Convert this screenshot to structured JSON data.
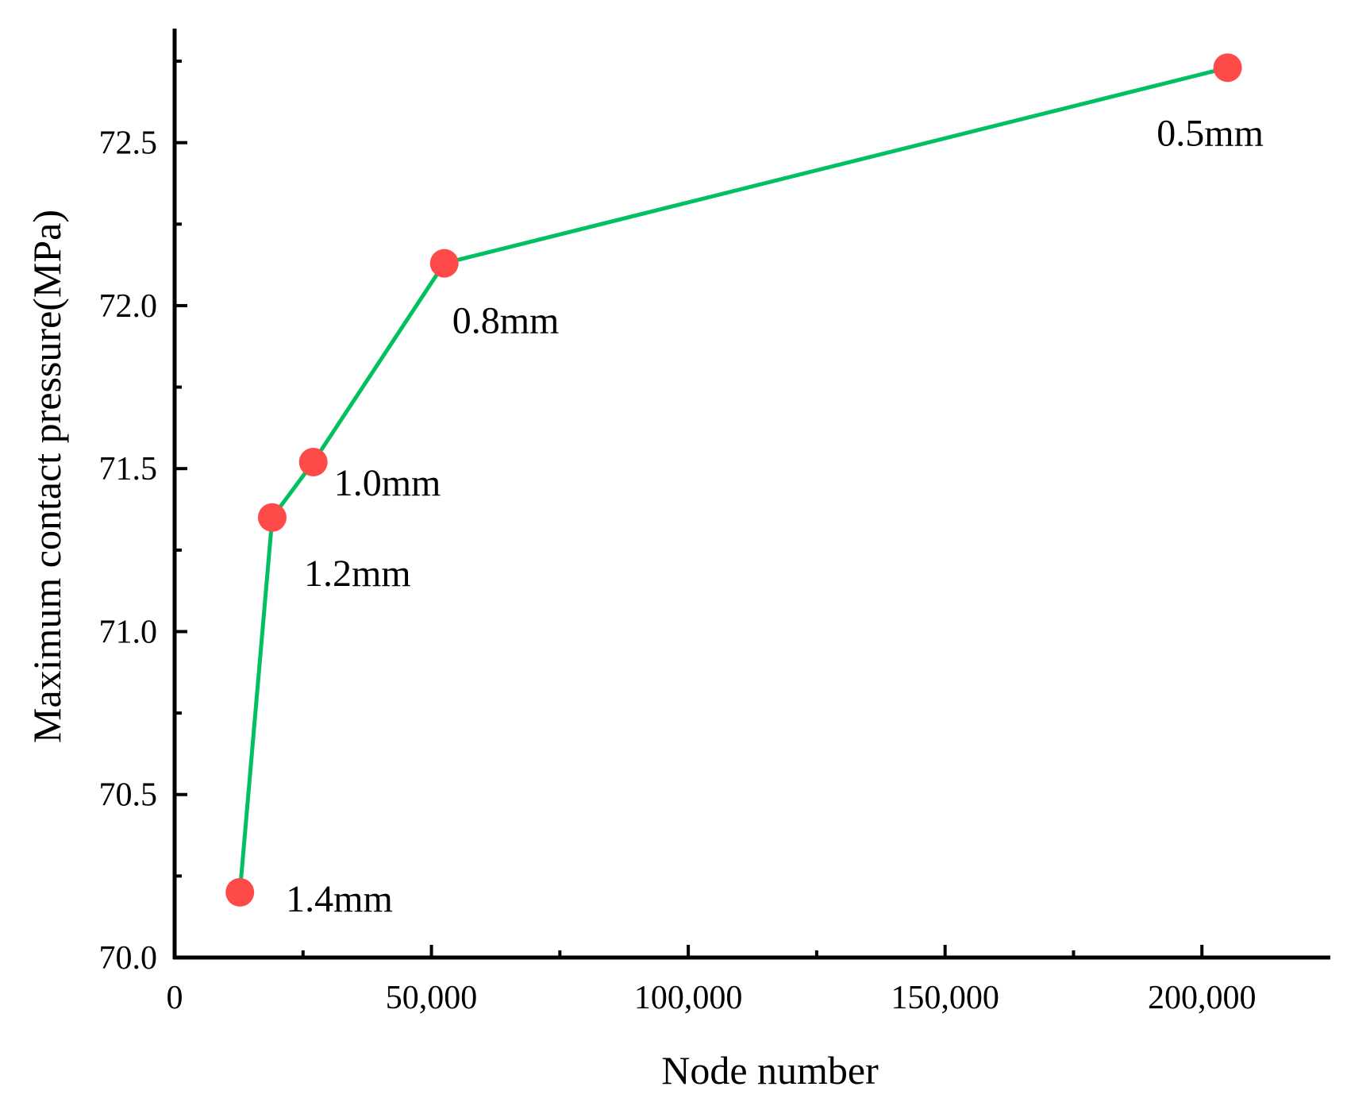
{
  "chart_data": {
    "type": "line",
    "title": "",
    "xlabel": "Node number",
    "ylabel": "Maximum contact pressure(MPa)",
    "xlim": [
      0,
      225000
    ],
    "ylim": [
      70.0,
      72.85
    ],
    "x_ticks": [
      0,
      50000,
      100000,
      150000,
      200000
    ],
    "x_tick_labels": [
      "0",
      "50,000",
      "100,000",
      "150,000",
      "200,000"
    ],
    "y_ticks": [
      70.0,
      70.5,
      71.0,
      71.5,
      72.0,
      72.5
    ],
    "y_tick_labels": [
      "70.0",
      "70.5",
      "71.0",
      "71.5",
      "72.0",
      "72.5"
    ],
    "grid": false,
    "legend": "none",
    "line_color": "#00c060",
    "marker_color": "#ff4a4a",
    "series": [
      {
        "x": [
          12700,
          19000,
          27000,
          52500,
          205000
        ],
        "y": [
          70.2,
          71.35,
          71.52,
          72.13,
          72.73
        ],
        "point_labels": [
          "1.4mm",
          "1.2mm",
          "1.0mm",
          "0.8mm",
          "0.5mm"
        ]
      }
    ]
  }
}
